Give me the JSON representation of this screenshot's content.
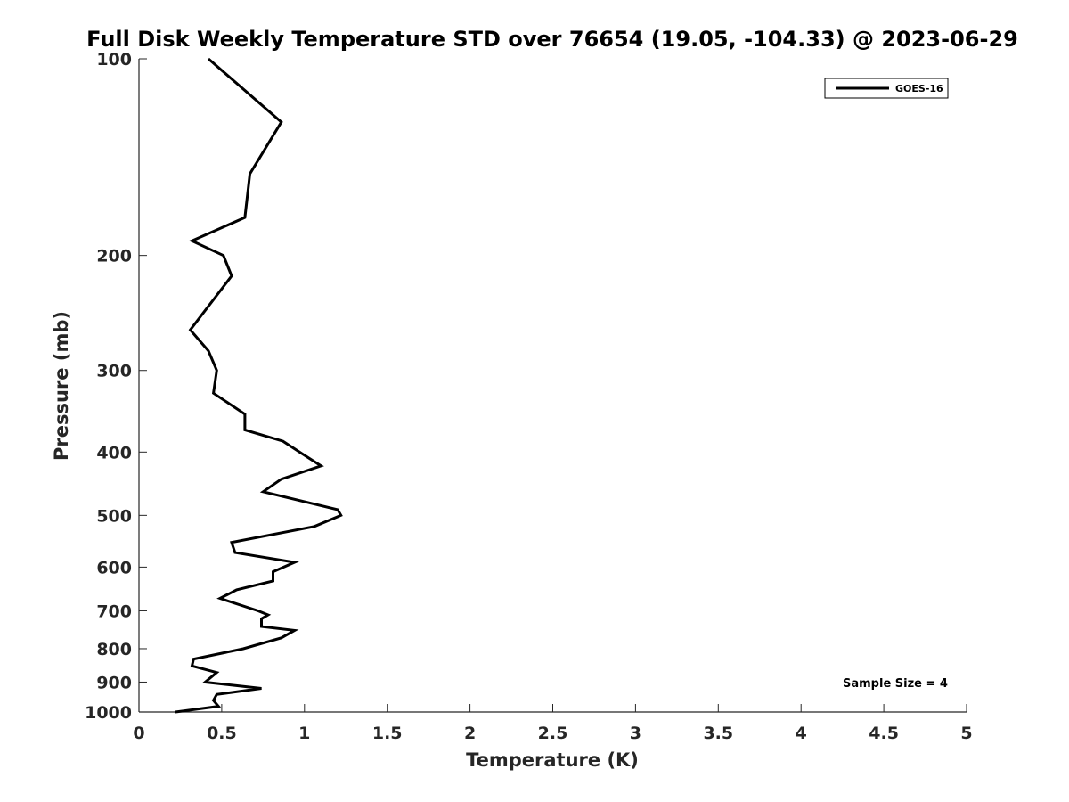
{
  "chart_data": {
    "type": "line",
    "title": "Full Disk Weekly Temperature STD over 76654 (19.05, -104.33) @ 2023-06-29",
    "xlabel": "Temperature (K)",
    "ylabel": "Pressure (mb)",
    "xlim": [
      0,
      5
    ],
    "ylim": [
      100,
      1000
    ],
    "yscale": "log",
    "y_inverted": true,
    "grid": false,
    "x_ticks": [
      0,
      0.5,
      1,
      1.5,
      2,
      2.5,
      3,
      3.5,
      4,
      4.5,
      5
    ],
    "x_tick_labels": [
      "0",
      "0.5",
      "1",
      "1.5",
      "2",
      "2.5",
      "3",
      "3.5",
      "4",
      "4.5",
      "5"
    ],
    "y_ticks": [
      100,
      200,
      300,
      400,
      500,
      600,
      700,
      800,
      900,
      1000
    ],
    "y_tick_labels": [
      "100",
      "200",
      "300",
      "400",
      "500",
      "600",
      "700",
      "800",
      "900",
      "1000"
    ],
    "legend_placement": "top-right",
    "annotation": "Sample Size = 4",
    "series": [
      {
        "name": "GOES-16",
        "color": "#000000",
        "points": [
          [
            0.42,
            100
          ],
          [
            0.86,
            125
          ],
          [
            0.67,
            150
          ],
          [
            0.64,
            175
          ],
          [
            0.32,
            190
          ],
          [
            0.51,
            200
          ],
          [
            0.56,
            215
          ],
          [
            0.31,
            260
          ],
          [
            0.42,
            280
          ],
          [
            0.47,
            300
          ],
          [
            0.45,
            325
          ],
          [
            0.64,
            350
          ],
          [
            0.64,
            370
          ],
          [
            0.87,
            385
          ],
          [
            0.97,
            400
          ],
          [
            1.1,
            420
          ],
          [
            0.86,
            440
          ],
          [
            0.75,
            460
          ],
          [
            1.2,
            490
          ],
          [
            1.22,
            500
          ],
          [
            1.06,
            520
          ],
          [
            0.56,
            550
          ],
          [
            0.58,
            570
          ],
          [
            0.94,
            590
          ],
          [
            0.81,
            610
          ],
          [
            0.81,
            630
          ],
          [
            0.59,
            650
          ],
          [
            0.49,
            670
          ],
          [
            0.72,
            700
          ],
          [
            0.78,
            710
          ],
          [
            0.74,
            720
          ],
          [
            0.74,
            740
          ],
          [
            0.94,
            750
          ],
          [
            0.86,
            770
          ],
          [
            0.63,
            800
          ],
          [
            0.33,
            830
          ],
          [
            0.32,
            850
          ],
          [
            0.47,
            870
          ],
          [
            0.4,
            900
          ],
          [
            0.74,
            920
          ],
          [
            0.47,
            940
          ],
          [
            0.45,
            960
          ],
          [
            0.48,
            980
          ],
          [
            0.22,
            1000
          ]
        ]
      }
    ]
  }
}
